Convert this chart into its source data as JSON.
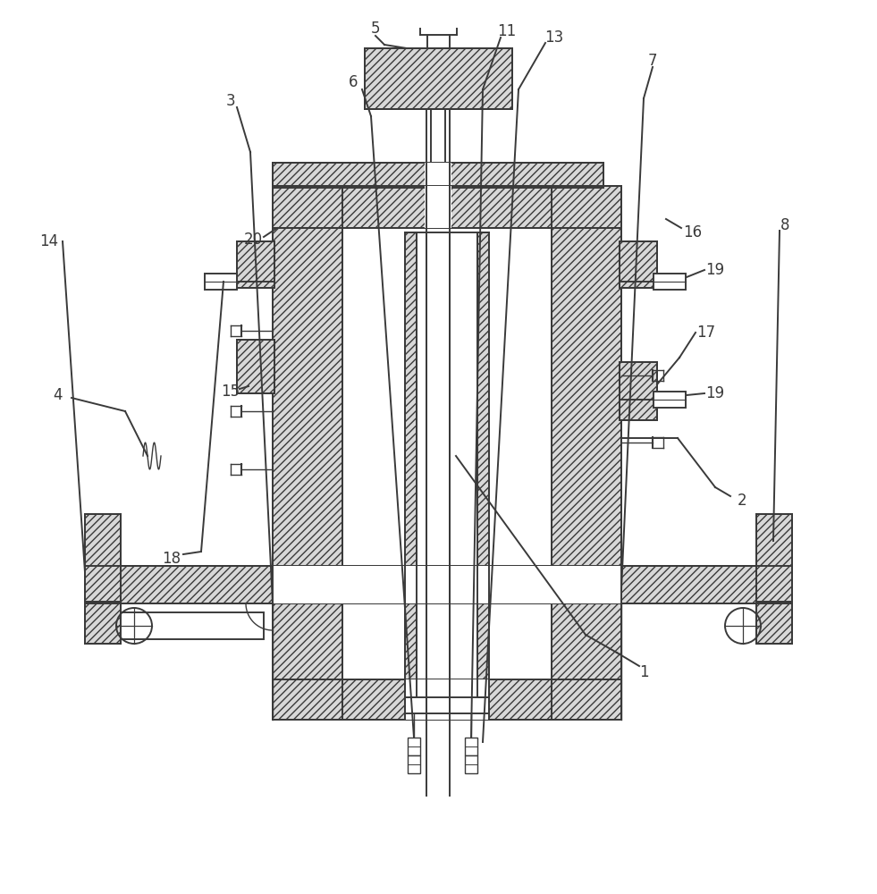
{
  "bg_color": "#ffffff",
  "lc": "#3a3a3a",
  "lw": 1.4,
  "hatch_fc": "#d8d8d8",
  "white": "#ffffff",
  "fig_w": 9.81,
  "fig_h": 10.0,
  "dpi": 100
}
